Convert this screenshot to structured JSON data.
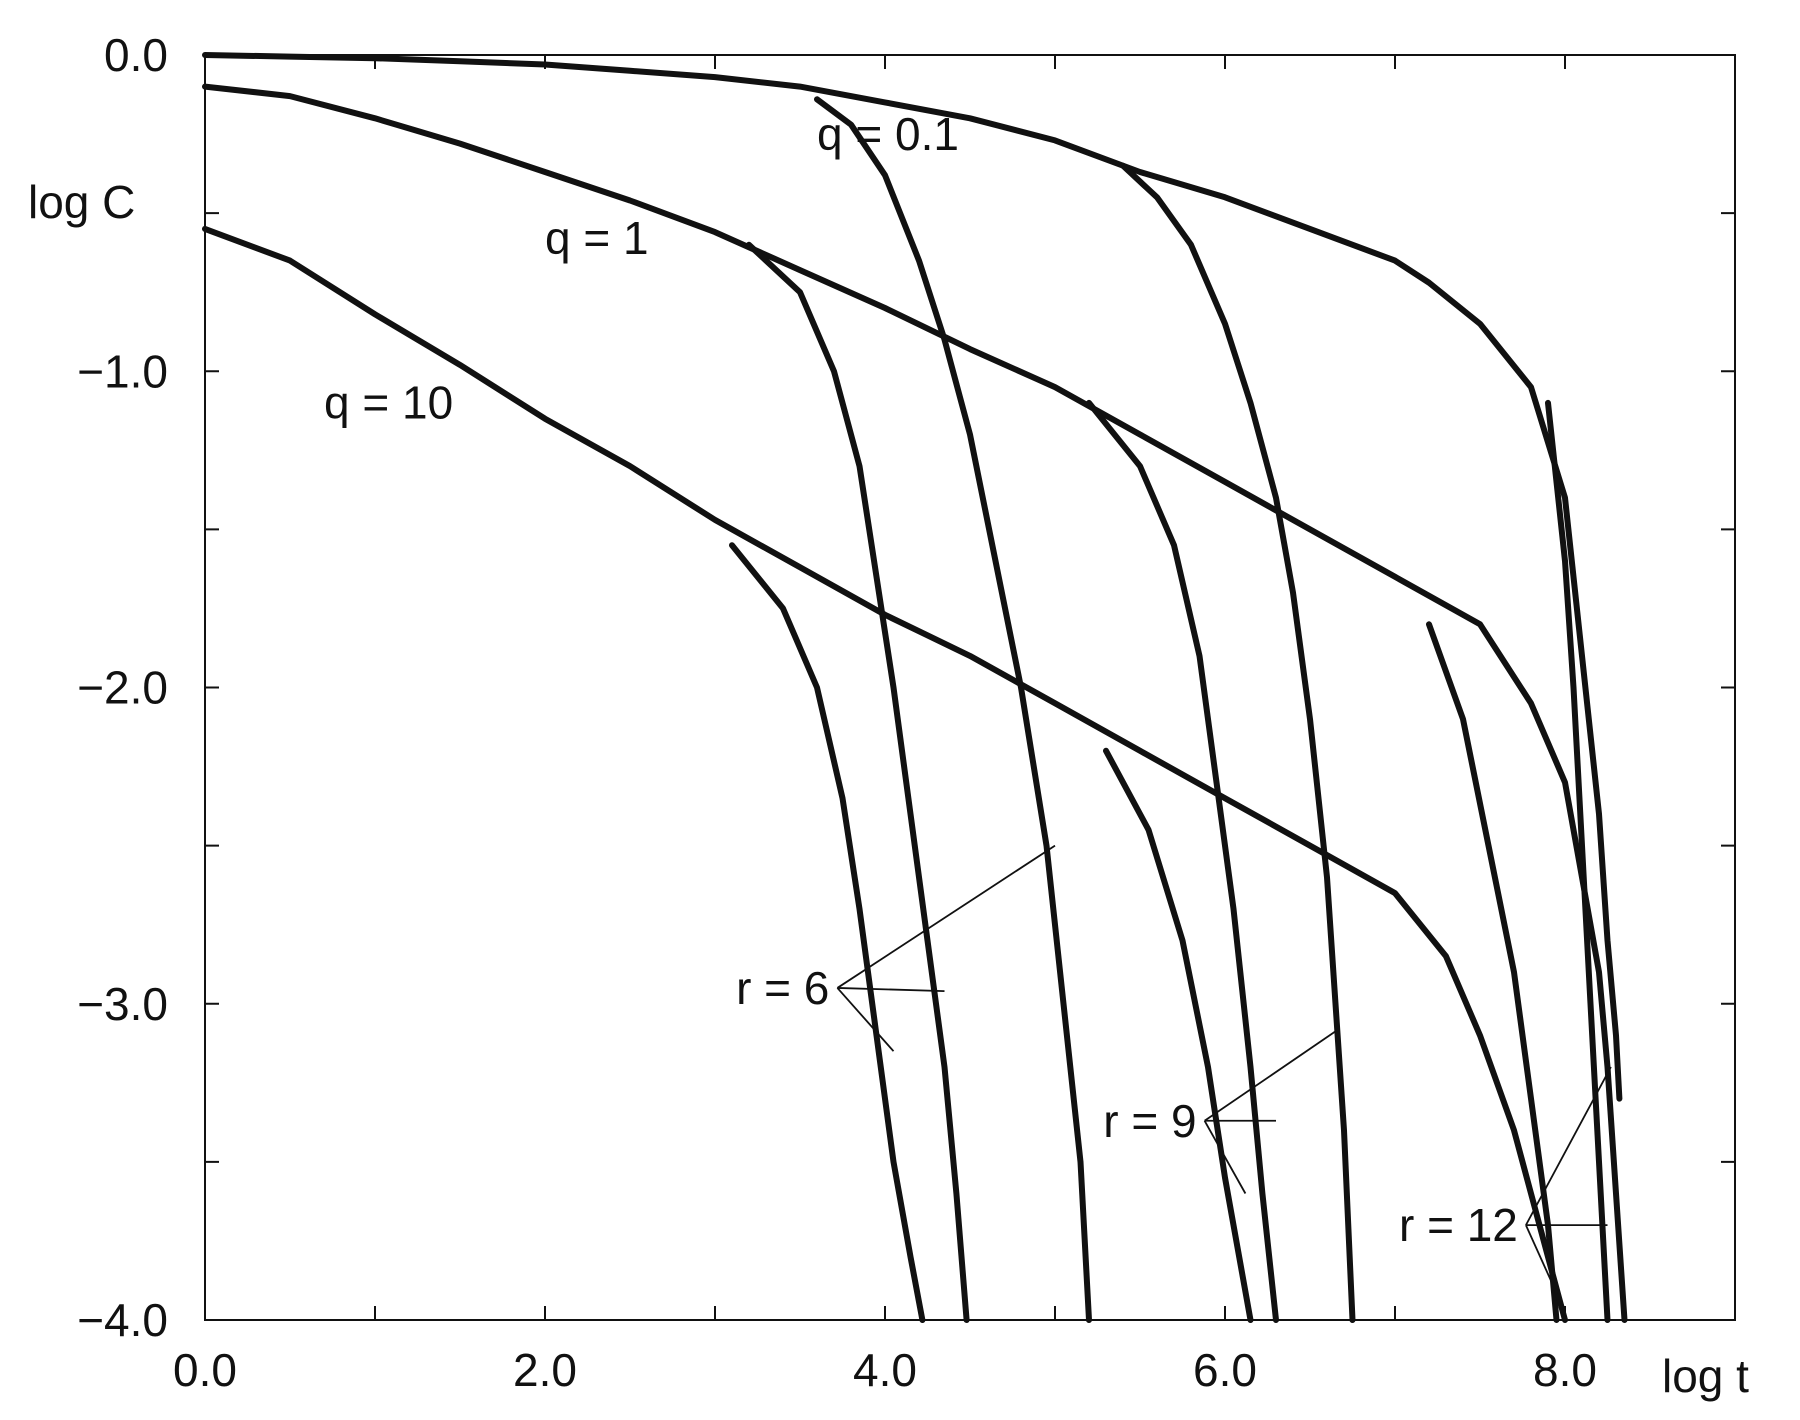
{
  "chart_data": {
    "type": "line",
    "xlabel": "log t",
    "ylabel": "log C",
    "xlim": [
      0,
      9
    ],
    "ylim": [
      -4,
      0
    ],
    "x_ticks": [
      0,
      2,
      4,
      6,
      8
    ],
    "x_tick_labels": [
      "0.0",
      "2.0",
      "4.0",
      "6.0",
      "8.0"
    ],
    "y_ticks": [
      0,
      -1,
      -2,
      -3,
      -4
    ],
    "y_tick_labels": [
      "0.0",
      "−1.0",
      "−2.0",
      "−3.0",
      "−4.0"
    ],
    "grid": false,
    "families": [
      {
        "label": "q = 0.1",
        "label_pos": [
          3.6,
          -0.3
        ],
        "main": [
          [
            0,
            0
          ],
          [
            0.5,
            -0.005
          ],
          [
            1,
            -0.01
          ],
          [
            1.5,
            -0.02
          ],
          [
            2,
            -0.03
          ],
          [
            2.5,
            -0.05
          ],
          [
            3,
            -0.07
          ],
          [
            3.5,
            -0.1
          ],
          [
            4,
            -0.15
          ],
          [
            4.5,
            -0.2
          ],
          [
            5,
            -0.27
          ],
          [
            5.5,
            -0.37
          ],
          [
            6,
            -0.45
          ],
          [
            6.5,
            -0.55
          ],
          [
            7,
            -0.65
          ],
          [
            7.2,
            -0.72
          ],
          [
            7.5,
            -0.85
          ],
          [
            7.8,
            -1.05
          ],
          [
            8,
            -1.4
          ],
          [
            8.1,
            -1.9
          ],
          [
            8.2,
            -2.4
          ],
          [
            8.25,
            -2.8
          ],
          [
            8.3,
            -3.1
          ],
          [
            8.32,
            -3.3
          ]
        ],
        "branches": [
          {
            "r": "r = 6",
            "points": [
              [
                3.6,
                -0.14
              ],
              [
                3.8,
                -0.22
              ],
              [
                4,
                -0.38
              ],
              [
                4.2,
                -0.65
              ],
              [
                4.35,
                -0.9
              ],
              [
                4.5,
                -1.2
              ],
              [
                4.65,
                -1.6
              ],
              [
                4.8,
                -2.0
              ],
              [
                4.95,
                -2.5
              ],
              [
                5.05,
                -3.0
              ],
              [
                5.15,
                -3.5
              ],
              [
                5.2,
                -4.0
              ]
            ]
          },
          {
            "r": "r = 9",
            "points": [
              [
                5.4,
                -0.35
              ],
              [
                5.6,
                -0.45
              ],
              [
                5.8,
                -0.6
              ],
              [
                6.0,
                -0.85
              ],
              [
                6.15,
                -1.1
              ],
              [
                6.3,
                -1.4
              ],
              [
                6.4,
                -1.7
              ],
              [
                6.5,
                -2.1
              ],
              [
                6.6,
                -2.6
              ],
              [
                6.65,
                -3.0
              ],
              [
                6.7,
                -3.4
              ],
              [
                6.75,
                -4.0
              ]
            ]
          },
          {
            "r": "r = 12",
            "points": [
              [
                7.9,
                -1.1
              ],
              [
                8.0,
                -1.6
              ],
              [
                8.05,
                -2.0
              ],
              [
                8.1,
                -2.5
              ],
              [
                8.15,
                -3.0
              ],
              [
                8.2,
                -3.5
              ],
              [
                8.25,
                -4.0
              ]
            ]
          }
        ]
      },
      {
        "label": "q = 1",
        "label_pos": [
          2.0,
          -0.63
        ],
        "main": [
          [
            0,
            -0.1
          ],
          [
            0.5,
            -0.13
          ],
          [
            1,
            -0.2
          ],
          [
            1.5,
            -0.28
          ],
          [
            2,
            -0.37
          ],
          [
            2.5,
            -0.46
          ],
          [
            3,
            -0.56
          ],
          [
            3.5,
            -0.68
          ],
          [
            4,
            -0.8
          ],
          [
            4.5,
            -0.93
          ],
          [
            5,
            -1.05
          ],
          [
            5.5,
            -1.2
          ],
          [
            6,
            -1.35
          ],
          [
            6.5,
            -1.5
          ],
          [
            7,
            -1.65
          ],
          [
            7.5,
            -1.8
          ],
          [
            7.8,
            -2.05
          ],
          [
            8,
            -2.3
          ],
          [
            8.1,
            -2.6
          ],
          [
            8.2,
            -2.9
          ],
          [
            8.25,
            -3.2
          ],
          [
            8.3,
            -3.6
          ],
          [
            8.35,
            -4.0
          ]
        ],
        "branches": [
          {
            "r": "r = 6",
            "points": [
              [
                3.2,
                -0.6
              ],
              [
                3.5,
                -0.75
              ],
              [
                3.7,
                -1.0
              ],
              [
                3.85,
                -1.3
              ],
              [
                3.95,
                -1.65
              ],
              [
                4.05,
                -2.0
              ],
              [
                4.15,
                -2.4
              ],
              [
                4.25,
                -2.8
              ],
              [
                4.35,
                -3.2
              ],
              [
                4.42,
                -3.6
              ],
              [
                4.48,
                -4.0
              ]
            ]
          },
          {
            "r": "r = 9",
            "points": [
              [
                5.2,
                -1.1
              ],
              [
                5.5,
                -1.3
              ],
              [
                5.7,
                -1.55
              ],
              [
                5.85,
                -1.9
              ],
              [
                5.95,
                -2.3
              ],
              [
                6.05,
                -2.7
              ],
              [
                6.15,
                -3.2
              ],
              [
                6.22,
                -3.6
              ],
              [
                6.3,
                -4.0
              ]
            ]
          },
          {
            "r": "r = 12",
            "points": [
              [
                7.2,
                -1.8
              ],
              [
                7.4,
                -2.1
              ],
              [
                7.55,
                -2.5
              ],
              [
                7.7,
                -2.9
              ],
              [
                7.8,
                -3.3
              ],
              [
                7.9,
                -3.7
              ],
              [
                7.95,
                -4.0
              ]
            ]
          }
        ]
      },
      {
        "label": "q = 10",
        "label_pos": [
          0.7,
          -1.15
        ],
        "main": [
          [
            0,
            -0.55
          ],
          [
            0.5,
            -0.65
          ],
          [
            1,
            -0.82
          ],
          [
            1.5,
            -0.98
          ],
          [
            2,
            -1.15
          ],
          [
            2.5,
            -1.3
          ],
          [
            3,
            -1.47
          ],
          [
            3.5,
            -1.62
          ],
          [
            4,
            -1.77
          ],
          [
            4.5,
            -1.9
          ],
          [
            5,
            -2.05
          ],
          [
            5.5,
            -2.2
          ],
          [
            6,
            -2.35
          ],
          [
            6.5,
            -2.5
          ],
          [
            7,
            -2.65
          ],
          [
            7.3,
            -2.85
          ],
          [
            7.5,
            -3.1
          ],
          [
            7.7,
            -3.4
          ],
          [
            7.8,
            -3.6
          ],
          [
            7.9,
            -3.8
          ],
          [
            8,
            -4.0
          ]
        ],
        "branches": [
          {
            "r": "r = 6",
            "points": [
              [
                3.1,
                -1.55
              ],
              [
                3.4,
                -1.75
              ],
              [
                3.6,
                -2.0
              ],
              [
                3.75,
                -2.35
              ],
              [
                3.85,
                -2.7
              ],
              [
                3.95,
                -3.1
              ],
              [
                4.05,
                -3.5
              ],
              [
                4.15,
                -3.8
              ],
              [
                4.22,
                -4.0
              ]
            ]
          },
          {
            "r": "r = 9",
            "points": [
              [
                5.3,
                -2.2
              ],
              [
                5.55,
                -2.45
              ],
              [
                5.75,
                -2.8
              ],
              [
                5.9,
                -3.2
              ],
              [
                6.0,
                -3.55
              ],
              [
                6.1,
                -3.85
              ],
              [
                6.15,
                -4.0
              ]
            ]
          }
        ]
      }
    ],
    "annotations": [
      {
        "label": "r = 6",
        "anchor": [
          3.72,
          -2.95
        ],
        "targets": [
          [
            5.0,
            -2.5
          ],
          [
            4.35,
            -2.96
          ],
          [
            4.05,
            -3.15
          ]
        ]
      },
      {
        "label": "r = 9",
        "anchor": [
          5.88,
          -3.37
        ],
        "targets": [
          [
            6.67,
            -3.08
          ],
          [
            6.3,
            -3.37
          ],
          [
            6.12,
            -3.6
          ]
        ]
      },
      {
        "label": "r = 12",
        "anchor": [
          7.77,
          -3.7
        ],
        "targets": [
          [
            8.27,
            -3.2
          ],
          [
            8.25,
            -3.7
          ],
          [
            7.98,
            -3.95
          ]
        ]
      }
    ]
  }
}
